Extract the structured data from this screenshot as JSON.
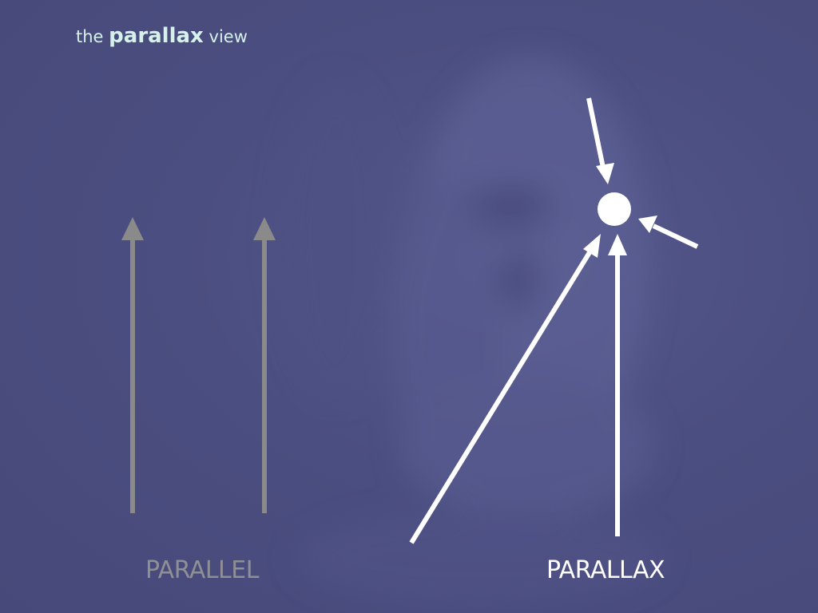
{
  "title": {
    "prefix": "the",
    "emphasis": "parallax",
    "suffix": "view"
  },
  "labels": {
    "parallel": "PARALLEL",
    "parallax": "PARALLAX"
  },
  "colors": {
    "background": "#4a4d7e",
    "title_text": "#d6f1ec",
    "parallel_arrow": "#8a8a8a",
    "parallax_arrow": "#ffffff",
    "parallel_label": "#8f8f96",
    "parallax_label": "#ffffff"
  },
  "background_image": "blurred-face-photo"
}
